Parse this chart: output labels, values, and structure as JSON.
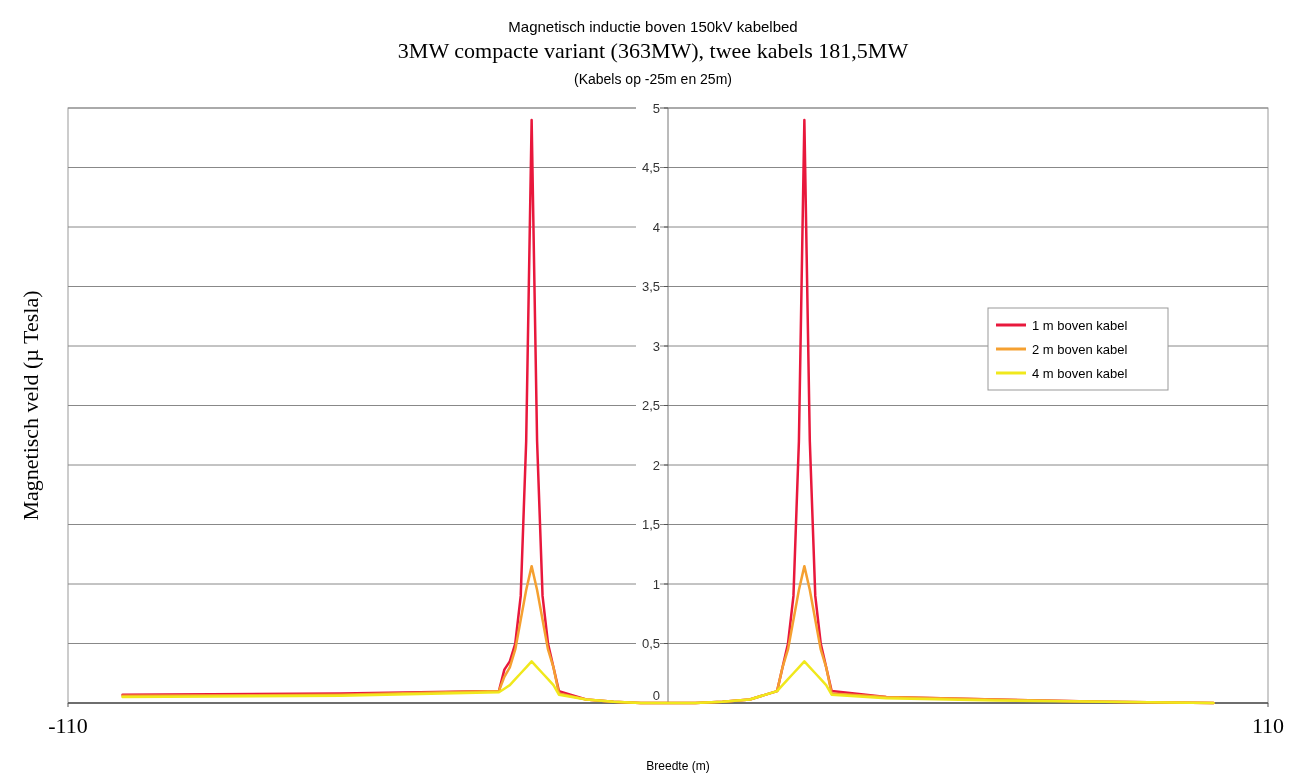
{
  "chart_data": {
    "type": "line",
    "title": "Magnetisch inductie boven 150kV kabelbed",
    "subtitle": "3MW compacte variant (363MW), twee kabels 181,5MW",
    "annotations": [
      "(Kabels op -25m en 25m)"
    ],
    "xlabel": "Breedte (m)",
    "ylabel": "Magnetisch veld (µ Tesla)",
    "x": [
      -100,
      -60,
      -31,
      -30,
      -29,
      -28,
      -27,
      -26,
      -25,
      -24,
      -23,
      -22,
      -21,
      -20,
      -15,
      -10,
      -5,
      0,
      5,
      10,
      15,
      20,
      21,
      22,
      23,
      24,
      25,
      26,
      27,
      28,
      29,
      30,
      40,
      60,
      80,
      100
    ],
    "series": [
      {
        "name": "1 m boven kabel",
        "color": "#e8183c",
        "values": [
          0.07,
          0.08,
          0.1,
          0.28,
          0.35,
          0.5,
          0.9,
          2.2,
          4.9,
          2.2,
          0.9,
          0.5,
          0.3,
          0.1,
          0.03,
          0.01,
          0,
          0,
          0,
          0.01,
          0.03,
          0.1,
          0.3,
          0.5,
          0.9,
          2.2,
          4.9,
          2.2,
          0.9,
          0.5,
          0.3,
          0.1,
          0.05,
          0.03,
          0.01,
          0
        ]
      },
      {
        "name": "2 m boven kabel",
        "color": "#f5a030",
        "values": [
          0.06,
          0.07,
          0.1,
          0.22,
          0.3,
          0.45,
          0.7,
          0.95,
          1.15,
          0.95,
          0.7,
          0.45,
          0.3,
          0.08,
          0.03,
          0.01,
          0,
          0,
          0,
          0.01,
          0.03,
          0.1,
          0.3,
          0.45,
          0.7,
          0.95,
          1.15,
          0.95,
          0.7,
          0.45,
          0.3,
          0.08,
          0.05,
          0.03,
          0.01,
          0
        ]
      },
      {
        "name": "4 m boven kabel",
        "color": "#f0e81c",
        "values": [
          0.05,
          0.06,
          0.09,
          0.12,
          0.15,
          0.2,
          0.25,
          0.3,
          0.35,
          0.3,
          0.25,
          0.2,
          0.15,
          0.07,
          0.03,
          0.01,
          0,
          0,
          0,
          0.01,
          0.03,
          0.1,
          0.15,
          0.2,
          0.25,
          0.3,
          0.35,
          0.3,
          0.25,
          0.2,
          0.15,
          0.07,
          0.04,
          0.02,
          0.01,
          0
        ]
      }
    ],
    "xlim": [
      -110,
      110
    ],
    "xticks": [
      -110,
      110
    ],
    "ylim": [
      0,
      5
    ],
    "yticks": [
      0,
      {
        "value": 0.5,
        "label": "0,5"
      },
      1,
      {
        "value": 1.5,
        "label": "1,5"
      },
      2,
      {
        "value": 2.5,
        "label": "2,5"
      },
      3,
      {
        "value": 3.5,
        "label": "3,5"
      },
      4,
      {
        "value": 4.5,
        "label": "4,5"
      },
      5
    ],
    "grid": "y",
    "legend": "right",
    "marker": "none",
    "line_style": "solid"
  }
}
